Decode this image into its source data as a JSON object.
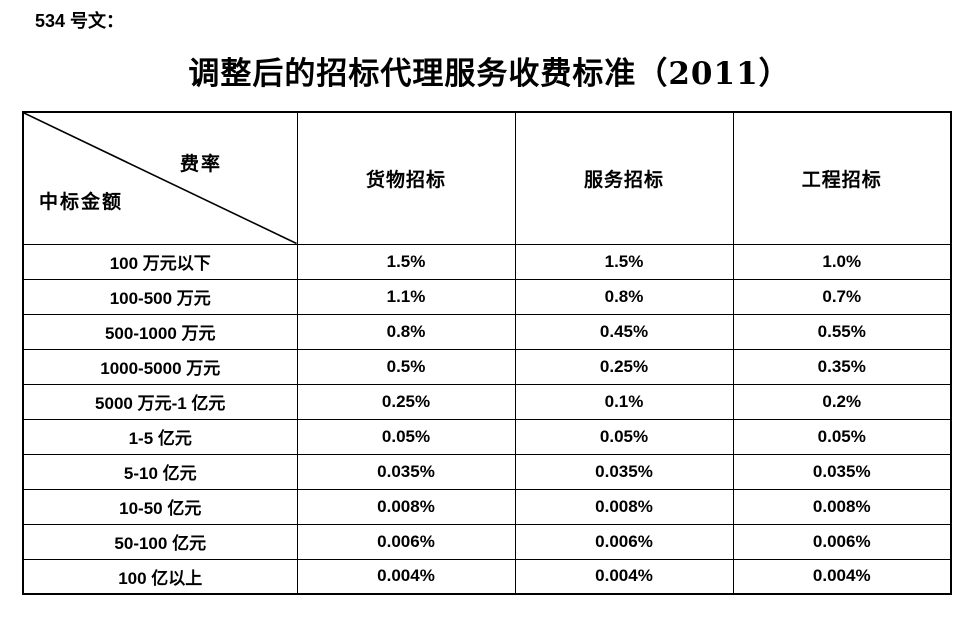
{
  "doc": {
    "doc_number": "534 号文：",
    "title": "调整后的招标代理服务收费标准（2011）"
  },
  "table": {
    "corner": {
      "top_right": "费率",
      "bottom_left": "中标金额"
    },
    "columns": [
      "货物招标",
      "服务招标",
      "工程招标"
    ],
    "rows": [
      {
        "label": "100 万元以下",
        "values": [
          "1.5%",
          "1.5%",
          "1.0%"
        ]
      },
      {
        "label": "100-500 万元",
        "values": [
          "1.1%",
          "0.8%",
          "0.7%"
        ]
      },
      {
        "label": "500-1000 万元",
        "values": [
          "0.8%",
          "0.45%",
          "0.55%"
        ]
      },
      {
        "label": "1000-5000 万元",
        "values": [
          "0.5%",
          "0.25%",
          "0.35%"
        ]
      },
      {
        "label": "5000 万元-1 亿元",
        "values": [
          "0.25%",
          "0.1%",
          "0.2%"
        ]
      },
      {
        "label": "1-5 亿元",
        "values": [
          "0.05%",
          "0.05%",
          "0.05%"
        ]
      },
      {
        "label": "5-10 亿元",
        "values": [
          "0.035%",
          "0.035%",
          "0.035%"
        ]
      },
      {
        "label": "10-50 亿元",
        "values": [
          "0.008%",
          "0.008%",
          "0.008%"
        ]
      },
      {
        "label": "50-100 亿元",
        "values": [
          "0.006%",
          "0.006%",
          "0.006%"
        ]
      },
      {
        "label": "100 亿以上",
        "values": [
          "0.004%",
          "0.004%",
          "0.004%"
        ]
      }
    ]
  },
  "colors": {
    "text": "#000000",
    "border": "#000000",
    "background": "#ffffff"
  }
}
